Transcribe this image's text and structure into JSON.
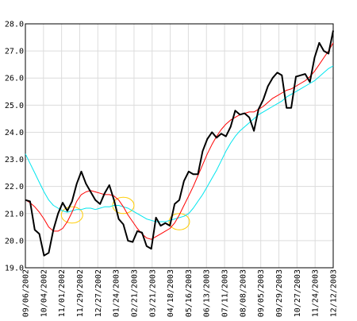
{
  "chart_data": {
    "type": "line",
    "title": "",
    "xlabel": "",
    "ylabel": "",
    "ylim": [
      19.0,
      28.0
    ],
    "yticks": [
      19.0,
      20.0,
      21.0,
      22.0,
      23.0,
      24.0,
      25.0,
      26.0,
      27.0,
      28.0
    ],
    "y_tick_labels": [
      "19.0",
      "20.0",
      "21.0",
      "22.0",
      "23.0",
      "24.0",
      "25.0",
      "26.0",
      "27.0",
      "28.0"
    ],
    "x_tick_labels": [
      "09/06/2002",
      "10/04/2002",
      "11/01/2002",
      "11/29/2002",
      "12/27/2002",
      "01/24/2003",
      "02/21/2003",
      "03/21/2003",
      "04/18/2003",
      "05/16/2003",
      "06/13/2003",
      "07/11/2003",
      "08/08/2003",
      "09/05/2003",
      "09/29/2003",
      "10/27/2003",
      "11/24/2003",
      "12/12/2003"
    ],
    "grid": true,
    "legend": "none",
    "n_points": 67,
    "series": [
      {
        "color": "#000000",
        "values": [
          21.5,
          21.45,
          20.4,
          20.25,
          19.45,
          19.55,
          20.4,
          21.0,
          21.4,
          21.1,
          21.45,
          22.1,
          22.55,
          22.1,
          21.8,
          21.5,
          21.35,
          21.75,
          22.05,
          21.5,
          20.8,
          20.6,
          20.0,
          19.95,
          20.35,
          20.3,
          19.8,
          19.7,
          20.85,
          20.55,
          20.65,
          20.55,
          21.35,
          21.5,
          22.2,
          22.55,
          22.45,
          22.45,
          23.3,
          23.75,
          24.0,
          23.8,
          23.95,
          23.85,
          24.2,
          24.8,
          24.65,
          24.7,
          24.55,
          24.05,
          24.85,
          25.2,
          25.7,
          26.0,
          26.2,
          26.1,
          24.9,
          24.9,
          26.05,
          26.1,
          26.15,
          25.85,
          26.75,
          27.3,
          27.0,
          26.9,
          27.75
        ]
      },
      {
        "color": "#ff0000",
        "values": [
          21.5,
          21.4,
          21.25,
          21.05,
          20.8,
          20.5,
          20.35,
          20.35,
          20.45,
          20.7,
          21.05,
          21.45,
          21.7,
          21.8,
          21.85,
          21.8,
          21.75,
          21.7,
          21.7,
          21.65,
          21.5,
          21.25,
          20.95,
          20.7,
          20.45,
          20.25,
          20.1,
          20.05,
          20.15,
          20.25,
          20.35,
          20.45,
          20.65,
          20.95,
          21.3,
          21.65,
          22.0,
          22.4,
          22.8,
          23.2,
          23.55,
          23.85,
          24.1,
          24.3,
          24.45,
          24.55,
          24.65,
          24.7,
          24.75,
          24.75,
          24.85,
          24.95,
          25.1,
          25.25,
          25.35,
          25.45,
          25.55,
          25.6,
          25.7,
          25.8,
          25.9,
          26.05,
          26.25,
          26.5,
          26.75,
          27.0,
          27.3
        ]
      },
      {
        "color": "#00e5ee",
        "values": [
          23.2,
          22.85,
          22.5,
          22.15,
          21.8,
          21.5,
          21.3,
          21.2,
          21.1,
          21.05,
          21.1,
          21.15,
          21.15,
          21.2,
          21.2,
          21.15,
          21.2,
          21.25,
          21.25,
          21.3,
          21.3,
          21.25,
          21.2,
          21.1,
          21.0,
          20.9,
          20.8,
          20.75,
          20.7,
          20.7,
          20.7,
          20.75,
          20.8,
          20.85,
          20.9,
          21.0,
          21.2,
          21.45,
          21.7,
          22.0,
          22.3,
          22.6,
          22.95,
          23.3,
          23.6,
          23.85,
          24.05,
          24.2,
          24.35,
          24.5,
          24.65,
          24.75,
          24.85,
          24.95,
          25.05,
          25.15,
          25.3,
          25.4,
          25.5,
          25.6,
          25.7,
          25.8,
          25.9,
          26.05,
          26.2,
          26.35,
          26.45
        ]
      }
    ],
    "annotations": [
      {
        "type": "ellipse",
        "color": "#ffcc00",
        "x_index": 10,
        "y": 20.95,
        "rx_points": 2.3,
        "ry": 0.3
      },
      {
        "type": "ellipse",
        "color": "#ffcc00",
        "x_index": 21,
        "y": 21.3,
        "rx_points": 2.3,
        "ry": 0.3
      },
      {
        "type": "ellipse",
        "color": "#ffcc00",
        "x_index": 33,
        "y": 20.7,
        "rx_points": 2.2,
        "ry": 0.3
      }
    ]
  }
}
